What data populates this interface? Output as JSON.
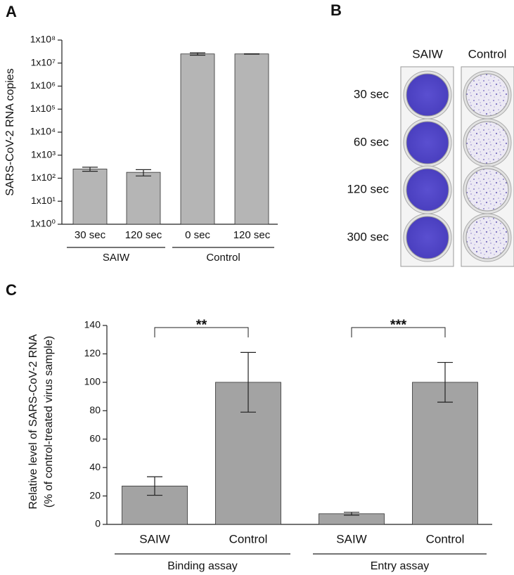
{
  "chart_data": [
    {
      "type": "bar",
      "label": "A",
      "ylabel": [
        "SARS-CoV-2 RNA copies"
      ],
      "log_scale": true,
      "color": "#b5b5b5",
      "ylim": [
        1,
        100000000
      ],
      "yticks": [
        {
          "value": 1,
          "label": "1x10⁰"
        },
        {
          "value": 10,
          "label": "1x10¹"
        },
        {
          "value": 100,
          "label": "1x10²"
        },
        {
          "value": 1000,
          "label": "1x10³"
        },
        {
          "value": 10000,
          "label": "1x10⁴"
        },
        {
          "value": 100000,
          "label": "1x10⁵"
        },
        {
          "value": 1000000,
          "label": "1x10⁶"
        },
        {
          "value": 10000000,
          "label": "1x10⁷"
        },
        {
          "value": 100000000,
          "label": "1x10⁸"
        }
      ],
      "groups": [
        {
          "name": "SAIW",
          "categories": [
            "30 sec",
            "120 sec"
          ],
          "values": [
            250,
            180
          ],
          "errors": [
            50,
            55
          ]
        },
        {
          "name": "Control",
          "categories": [
            "0 sec",
            "120 sec"
          ],
          "values": [
            25000000,
            25000000
          ],
          "errors": [
            3000000,
            500000
          ]
        }
      ]
    },
    {
      "type": "bar",
      "label": "C",
      "ylabel": [
        "Relative level of SARS-CoV-2 RNA",
        "(% of control-treated virus sample)"
      ],
      "log_scale": false,
      "color": "#a3a3a3",
      "ylim": [
        0,
        140
      ],
      "yticks": [
        0,
        20,
        40,
        60,
        80,
        100,
        120,
        140
      ],
      "groups": [
        {
          "name": "Binding assay",
          "categories": [
            "SAIW",
            "Control"
          ],
          "values": [
            27,
            100
          ],
          "errors": [
            6.5,
            21
          ],
          "annotation": "**"
        },
        {
          "name": "Entry assay",
          "categories": [
            "SAIW",
            "Control"
          ],
          "values": [
            7.5,
            100
          ],
          "errors": [
            1,
            14
          ],
          "annotation": "***"
        }
      ]
    }
  ],
  "photo": {
    "label": "B",
    "columns": [
      "SAIW",
      "Control"
    ],
    "rows": [
      "30 sec",
      "60 sec",
      "120 sec",
      "300 sec"
    ]
  }
}
